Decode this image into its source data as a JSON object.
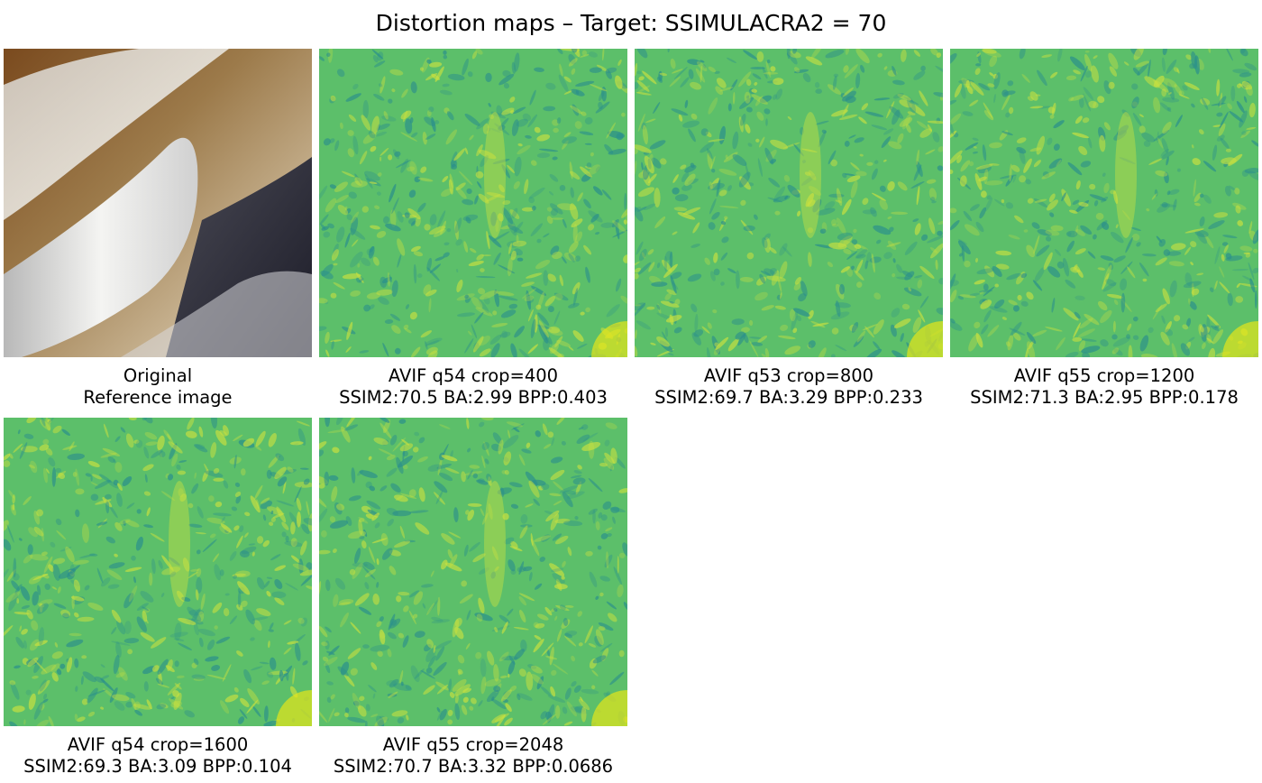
{
  "title": "Distortion maps – Target: SSIMULACRA2 = 70",
  "colors": {
    "map_base": "#5cbf6a",
    "map_low": "#2a8f8c",
    "map_high": "#c8e040",
    "map_hot": "#e6e619"
  },
  "panels": [
    {
      "kind": "reference",
      "line1": "Original",
      "line2": "Reference image"
    },
    {
      "kind": "distortion",
      "line1": "AVIF q54 crop=400",
      "line2": "SSIM2:70.5 BA:2.99 BPP:0.403"
    },
    {
      "kind": "distortion",
      "line1": "AVIF q53 crop=800",
      "line2": "SSIM2:69.7 BA:3.29 BPP:0.233"
    },
    {
      "kind": "distortion",
      "line1": "AVIF q55 crop=1200",
      "line2": "SSIM2:71.3 BA:2.95 BPP:0.178"
    },
    {
      "kind": "distortion",
      "line1": "AVIF q54 crop=1600",
      "line2": "SSIM2:69.3 BA:3.09 BPP:0.104"
    },
    {
      "kind": "distortion",
      "line1": "AVIF q55 crop=2048",
      "line2": "SSIM2:70.7 BA:3.32 BPP:0.0686"
    }
  ]
}
